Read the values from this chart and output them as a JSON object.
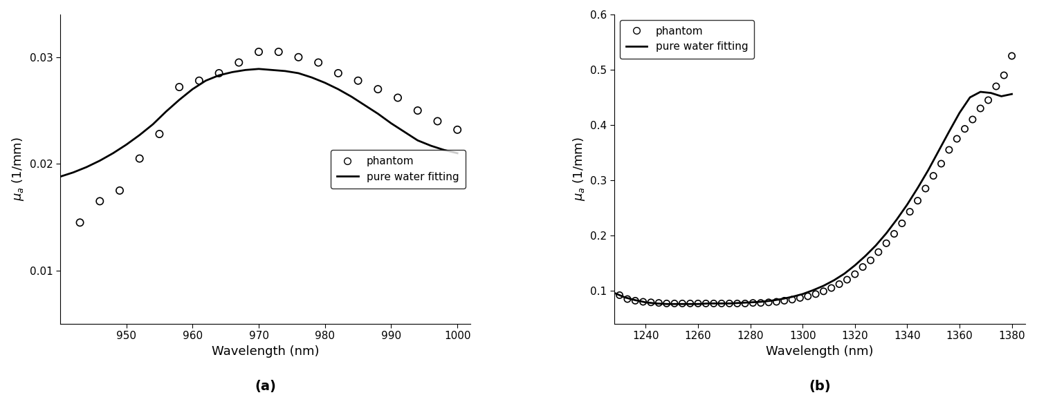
{
  "panel_a": {
    "xlabel": "Wavelength (nm)",
    "ylabel": "$\\mu_a$ (1/mm)",
    "label": "(a)",
    "xlim": [
      940,
      1002
    ],
    "ylim": [
      0.005,
      0.034
    ],
    "yticks": [
      0.01,
      0.02,
      0.03
    ],
    "xticks": [
      950,
      960,
      970,
      980,
      990,
      1000
    ],
    "scatter_x": [
      943,
      946,
      949,
      952,
      955,
      958,
      961,
      964,
      967,
      970,
      973,
      976,
      979,
      982,
      985,
      988,
      991,
      994,
      997,
      1000
    ],
    "scatter_y": [
      0.0145,
      0.0165,
      0.0175,
      0.0205,
      0.0228,
      0.0272,
      0.0278,
      0.0285,
      0.0295,
      0.0305,
      0.0305,
      0.03,
      0.0295,
      0.0285,
      0.0278,
      0.027,
      0.0262,
      0.025,
      0.024,
      0.0232
    ],
    "line_x": [
      940,
      942,
      944,
      946,
      948,
      950,
      952,
      954,
      956,
      958,
      960,
      962,
      964,
      966,
      968,
      970,
      972,
      974,
      976,
      978,
      980,
      982,
      984,
      986,
      988,
      990,
      992,
      994,
      996,
      998,
      1000
    ],
    "line_y": [
      0.0188,
      0.0192,
      0.0197,
      0.0203,
      0.021,
      0.0218,
      0.0227,
      0.0237,
      0.0249,
      0.026,
      0.027,
      0.0278,
      0.0283,
      0.0286,
      0.0288,
      0.0289,
      0.0288,
      0.0287,
      0.0285,
      0.0281,
      0.0276,
      0.027,
      0.0263,
      0.0255,
      0.0247,
      0.0238,
      0.023,
      0.0222,
      0.0217,
      0.0213,
      0.021
    ],
    "legend_phantom": "phantom",
    "legend_fitting": "pure water fitting"
  },
  "panel_b": {
    "xlabel": "Wavelength (nm)",
    "ylabel": "$\\mu_a$ (1/mm)",
    "label": "(b)",
    "xlim": [
      1228,
      1385
    ],
    "ylim": [
      0.04,
      0.6
    ],
    "yticks": [
      0.1,
      0.2,
      0.3,
      0.4,
      0.5,
      0.6
    ],
    "xticks": [
      1240,
      1260,
      1280,
      1300,
      1320,
      1340,
      1360,
      1380
    ],
    "scatter_x": [
      1230,
      1233,
      1236,
      1239,
      1242,
      1245,
      1248,
      1251,
      1254,
      1257,
      1260,
      1263,
      1266,
      1269,
      1272,
      1275,
      1278,
      1281,
      1284,
      1287,
      1290,
      1293,
      1296,
      1299,
      1302,
      1305,
      1308,
      1311,
      1314,
      1317,
      1320,
      1323,
      1326,
      1329,
      1332,
      1335,
      1338,
      1341,
      1344,
      1347,
      1350,
      1353,
      1356,
      1359,
      1362,
      1365,
      1368,
      1371,
      1374,
      1377,
      1380
    ],
    "scatter_y": [
      0.092,
      0.085,
      0.082,
      0.08,
      0.079,
      0.078,
      0.077,
      0.077,
      0.077,
      0.077,
      0.077,
      0.077,
      0.077,
      0.077,
      0.077,
      0.077,
      0.077,
      0.078,
      0.078,
      0.079,
      0.08,
      0.082,
      0.084,
      0.087,
      0.09,
      0.094,
      0.099,
      0.105,
      0.112,
      0.12,
      0.13,
      0.143,
      0.155,
      0.17,
      0.186,
      0.203,
      0.222,
      0.243,
      0.263,
      0.285,
      0.308,
      0.33,
      0.355,
      0.375,
      0.393,
      0.41,
      0.43,
      0.445,
      0.47,
      0.49,
      0.525
    ],
    "line_x": [
      1228,
      1232,
      1236,
      1240,
      1244,
      1248,
      1252,
      1256,
      1260,
      1264,
      1268,
      1272,
      1276,
      1280,
      1284,
      1288,
      1292,
      1296,
      1300,
      1304,
      1308,
      1312,
      1316,
      1320,
      1324,
      1328,
      1332,
      1336,
      1340,
      1344,
      1348,
      1352,
      1356,
      1360,
      1364,
      1368,
      1372,
      1376,
      1380
    ],
    "line_y": [
      0.096,
      0.088,
      0.083,
      0.079,
      0.077,
      0.076,
      0.076,
      0.076,
      0.076,
      0.077,
      0.077,
      0.077,
      0.078,
      0.079,
      0.08,
      0.082,
      0.085,
      0.089,
      0.094,
      0.101,
      0.109,
      0.119,
      0.131,
      0.146,
      0.163,
      0.182,
      0.204,
      0.229,
      0.256,
      0.286,
      0.318,
      0.353,
      0.388,
      0.422,
      0.45,
      0.46,
      0.458,
      0.452,
      0.456
    ],
    "legend_phantom": "phantom",
    "legend_fitting": "pure water fitting"
  }
}
